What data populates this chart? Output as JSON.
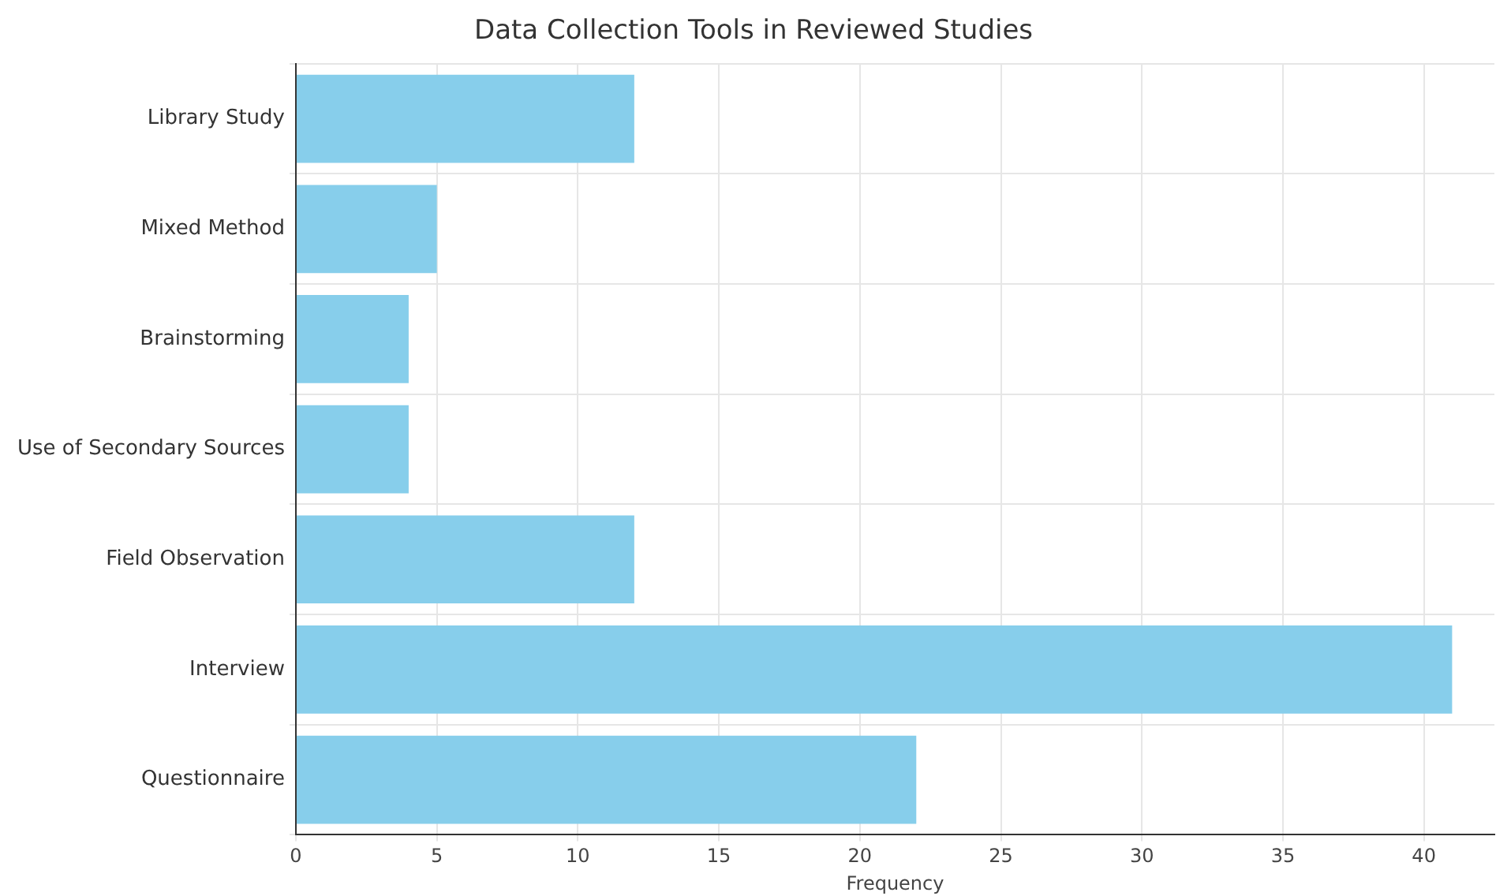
{
  "chart_data": {
    "type": "bar",
    "orientation": "horizontal",
    "title": "Data Collection Tools in Reviewed Studies",
    "xlabel": "Frequency",
    "categories": [
      "Library Study",
      "Mixed Method",
      "Brainstorming",
      "Use of Secondary Sources",
      "Field Observation",
      "Interview",
      "Questionnaire"
    ],
    "values": [
      12,
      5,
      4,
      4,
      12,
      41,
      22
    ],
    "color": "#87ceeb",
    "xlim": [
      0,
      42.5
    ],
    "xticks": [
      0,
      5,
      10,
      15,
      20,
      25,
      30,
      35,
      40
    ],
    "grid": true
  }
}
